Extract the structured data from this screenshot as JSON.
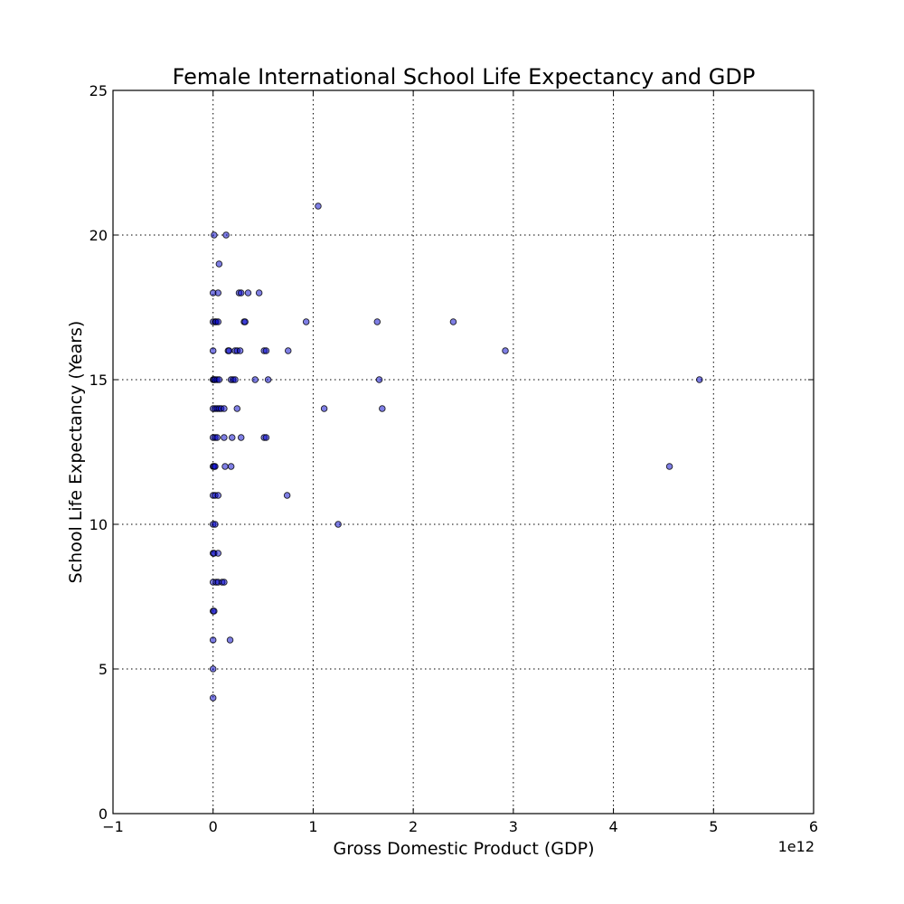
{
  "chart_data": {
    "type": "scatter",
    "title": "Female International School Life Expectancy and GDP",
    "xlabel": "Gross Domestic Product (GDP)",
    "ylabel": "School Life Expectancy (Years)",
    "x_offset_label": "1e12",
    "x_scale_factor": 1000000000000.0,
    "xlim": [
      -1,
      6
    ],
    "ylim": [
      0,
      25
    ],
    "xticks": [
      -1,
      0,
      1,
      2,
      3,
      4,
      5,
      6
    ],
    "xtick_labels": [
      "−1",
      "0",
      "1",
      "2",
      "3",
      "4",
      "5",
      "6"
    ],
    "yticks": [
      0,
      5,
      10,
      15,
      20,
      25
    ],
    "ytick_labels": [
      "0",
      "5",
      "10",
      "15",
      "20",
      "25"
    ],
    "grid": true,
    "marker_color": "#0000cc",
    "points": [
      {
        "x": 0.01,
        "y": 20
      },
      {
        "x": 0.13,
        "y": 20
      },
      {
        "x": 1.05,
        "y": 21
      },
      {
        "x": 0.06,
        "y": 19
      },
      {
        "x": 0.0,
        "y": 18
      },
      {
        "x": 0.05,
        "y": 18
      },
      {
        "x": 0.26,
        "y": 18
      },
      {
        "x": 0.28,
        "y": 18
      },
      {
        "x": 0.35,
        "y": 18
      },
      {
        "x": 0.46,
        "y": 18
      },
      {
        "x": 0.0,
        "y": 17
      },
      {
        "x": 0.02,
        "y": 17
      },
      {
        "x": 0.03,
        "y": 17
      },
      {
        "x": 0.05,
        "y": 17
      },
      {
        "x": 0.31,
        "y": 17
      },
      {
        "x": 0.32,
        "y": 17
      },
      {
        "x": 0.93,
        "y": 17
      },
      {
        "x": 1.64,
        "y": 17
      },
      {
        "x": 2.4,
        "y": 17
      },
      {
        "x": 0.0,
        "y": 16
      },
      {
        "x": 0.15,
        "y": 16
      },
      {
        "x": 0.16,
        "y": 16
      },
      {
        "x": 0.22,
        "y": 16
      },
      {
        "x": 0.24,
        "y": 16
      },
      {
        "x": 0.27,
        "y": 16
      },
      {
        "x": 0.51,
        "y": 16
      },
      {
        "x": 0.53,
        "y": 16
      },
      {
        "x": 0.75,
        "y": 16
      },
      {
        "x": 2.92,
        "y": 16
      },
      {
        "x": 0.0,
        "y": 15
      },
      {
        "x": 0.01,
        "y": 15
      },
      {
        "x": 0.02,
        "y": 15
      },
      {
        "x": 0.04,
        "y": 15
      },
      {
        "x": 0.06,
        "y": 15
      },
      {
        "x": 0.18,
        "y": 15
      },
      {
        "x": 0.2,
        "y": 15
      },
      {
        "x": 0.22,
        "y": 15
      },
      {
        "x": 0.42,
        "y": 15
      },
      {
        "x": 0.55,
        "y": 15
      },
      {
        "x": 1.66,
        "y": 15
      },
      {
        "x": 4.86,
        "y": 15
      },
      {
        "x": 0.0,
        "y": 14
      },
      {
        "x": 0.02,
        "y": 14
      },
      {
        "x": 0.04,
        "y": 14
      },
      {
        "x": 0.06,
        "y": 14
      },
      {
        "x": 0.08,
        "y": 14
      },
      {
        "x": 0.11,
        "y": 14
      },
      {
        "x": 0.24,
        "y": 14
      },
      {
        "x": 1.11,
        "y": 14
      },
      {
        "x": 1.69,
        "y": 14
      },
      {
        "x": 0.0,
        "y": 13
      },
      {
        "x": 0.02,
        "y": 13
      },
      {
        "x": 0.04,
        "y": 13
      },
      {
        "x": 0.11,
        "y": 13
      },
      {
        "x": 0.19,
        "y": 13
      },
      {
        "x": 0.28,
        "y": 13
      },
      {
        "x": 0.51,
        "y": 13
      },
      {
        "x": 0.53,
        "y": 13
      },
      {
        "x": 0.0,
        "y": 12
      },
      {
        "x": 0.01,
        "y": 12
      },
      {
        "x": 0.02,
        "y": 12
      },
      {
        "x": 0.12,
        "y": 12
      },
      {
        "x": 0.18,
        "y": 12
      },
      {
        "x": 4.56,
        "y": 12
      },
      {
        "x": 0.0,
        "y": 11
      },
      {
        "x": 0.02,
        "y": 11
      },
      {
        "x": 0.05,
        "y": 11
      },
      {
        "x": 0.74,
        "y": 11
      },
      {
        "x": 0.0,
        "y": 10
      },
      {
        "x": 0.02,
        "y": 10
      },
      {
        "x": 1.25,
        "y": 10
      },
      {
        "x": 0.0,
        "y": 9
      },
      {
        "x": 0.01,
        "y": 9
      },
      {
        "x": 0.05,
        "y": 9
      },
      {
        "x": 0.0,
        "y": 8
      },
      {
        "x": 0.03,
        "y": 8
      },
      {
        "x": 0.05,
        "y": 8
      },
      {
        "x": 0.09,
        "y": 8
      },
      {
        "x": 0.11,
        "y": 8
      },
      {
        "x": 0.0,
        "y": 7
      },
      {
        "x": 0.01,
        "y": 7
      },
      {
        "x": 0.0,
        "y": 6
      },
      {
        "x": 0.17,
        "y": 6
      },
      {
        "x": 0.0,
        "y": 5
      },
      {
        "x": 0.0,
        "y": 4
      }
    ]
  }
}
